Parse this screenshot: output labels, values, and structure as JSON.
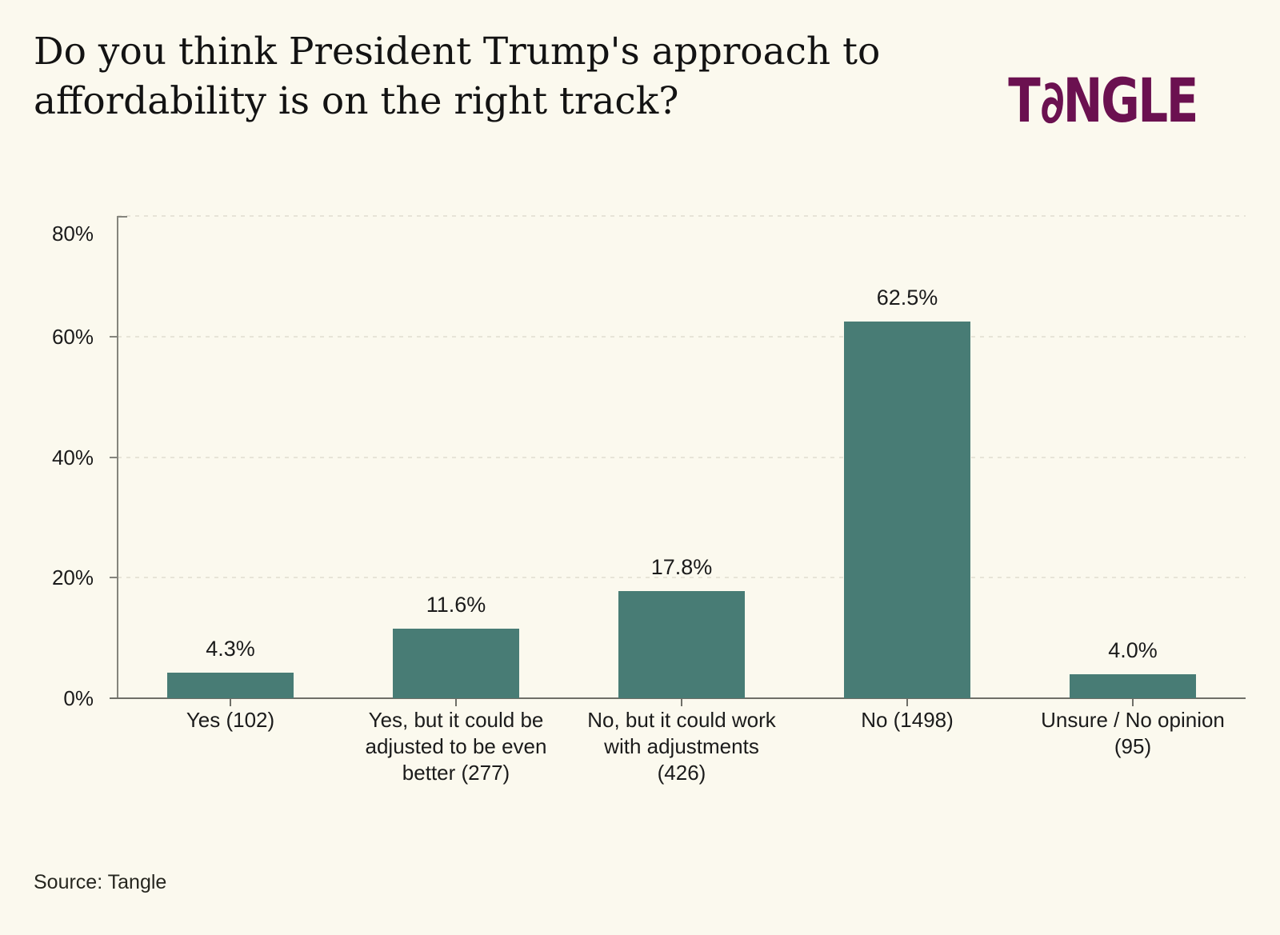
{
  "page": {
    "title_lines": [
      "Do you think President Trump's approach to",
      "affordability is on the right track?"
    ],
    "source": "Source: Tangle",
    "logo": {
      "parts": [
        "T",
        "∂",
        "NGLE"
      ],
      "color": "#6B1150"
    }
  },
  "colors": {
    "background": "#FBF9EE",
    "bar": "#487C75",
    "axis": "#85857d",
    "gridline": "#e7e4d7",
    "text": "#1b1b1b",
    "logo": "#6B1150"
  },
  "chart_data": {
    "type": "bar",
    "title": "Do you think President Trump's approach to affordability is on the right track?",
    "categories": [
      "Yes (102)",
      "Yes, but it could be adjusted to be even better (277)",
      "No, but it could work with adjustments (426)",
      "No (1498)",
      "Unsure / No opinion (95)"
    ],
    "values": [
      4.3,
      11.6,
      17.8,
      62.5,
      4.0
    ],
    "value_labels": [
      "4.3%",
      "11.6%",
      "17.8%",
      "62.5%",
      "4.0%"
    ],
    "counts": [
      102,
      277,
      426,
      1498,
      95
    ],
    "category_label_lines": [
      [
        "Yes (102)"
      ],
      [
        "Yes, but it could be",
        "adjusted to be even",
        "better (277)"
      ],
      [
        "No, but it could work",
        "with adjustments",
        "(426)"
      ],
      [
        "No (1498)"
      ],
      [
        "Unsure / No opinion",
        "(95)"
      ]
    ],
    "xlabel": "",
    "ylabel": "",
    "ylim": [
      0,
      80
    ],
    "yticks": [
      {
        "value": 0,
        "label": "0%"
      },
      {
        "value": 20,
        "label": "20%"
      },
      {
        "value": 40,
        "label": "40%"
      },
      {
        "value": 60,
        "label": "60%"
      },
      {
        "value": 80,
        "label": "80%"
      }
    ],
    "grid": "dashed-horizontal",
    "legend": "none",
    "bar_color": "#487C75",
    "source": "Source: Tangle"
  }
}
